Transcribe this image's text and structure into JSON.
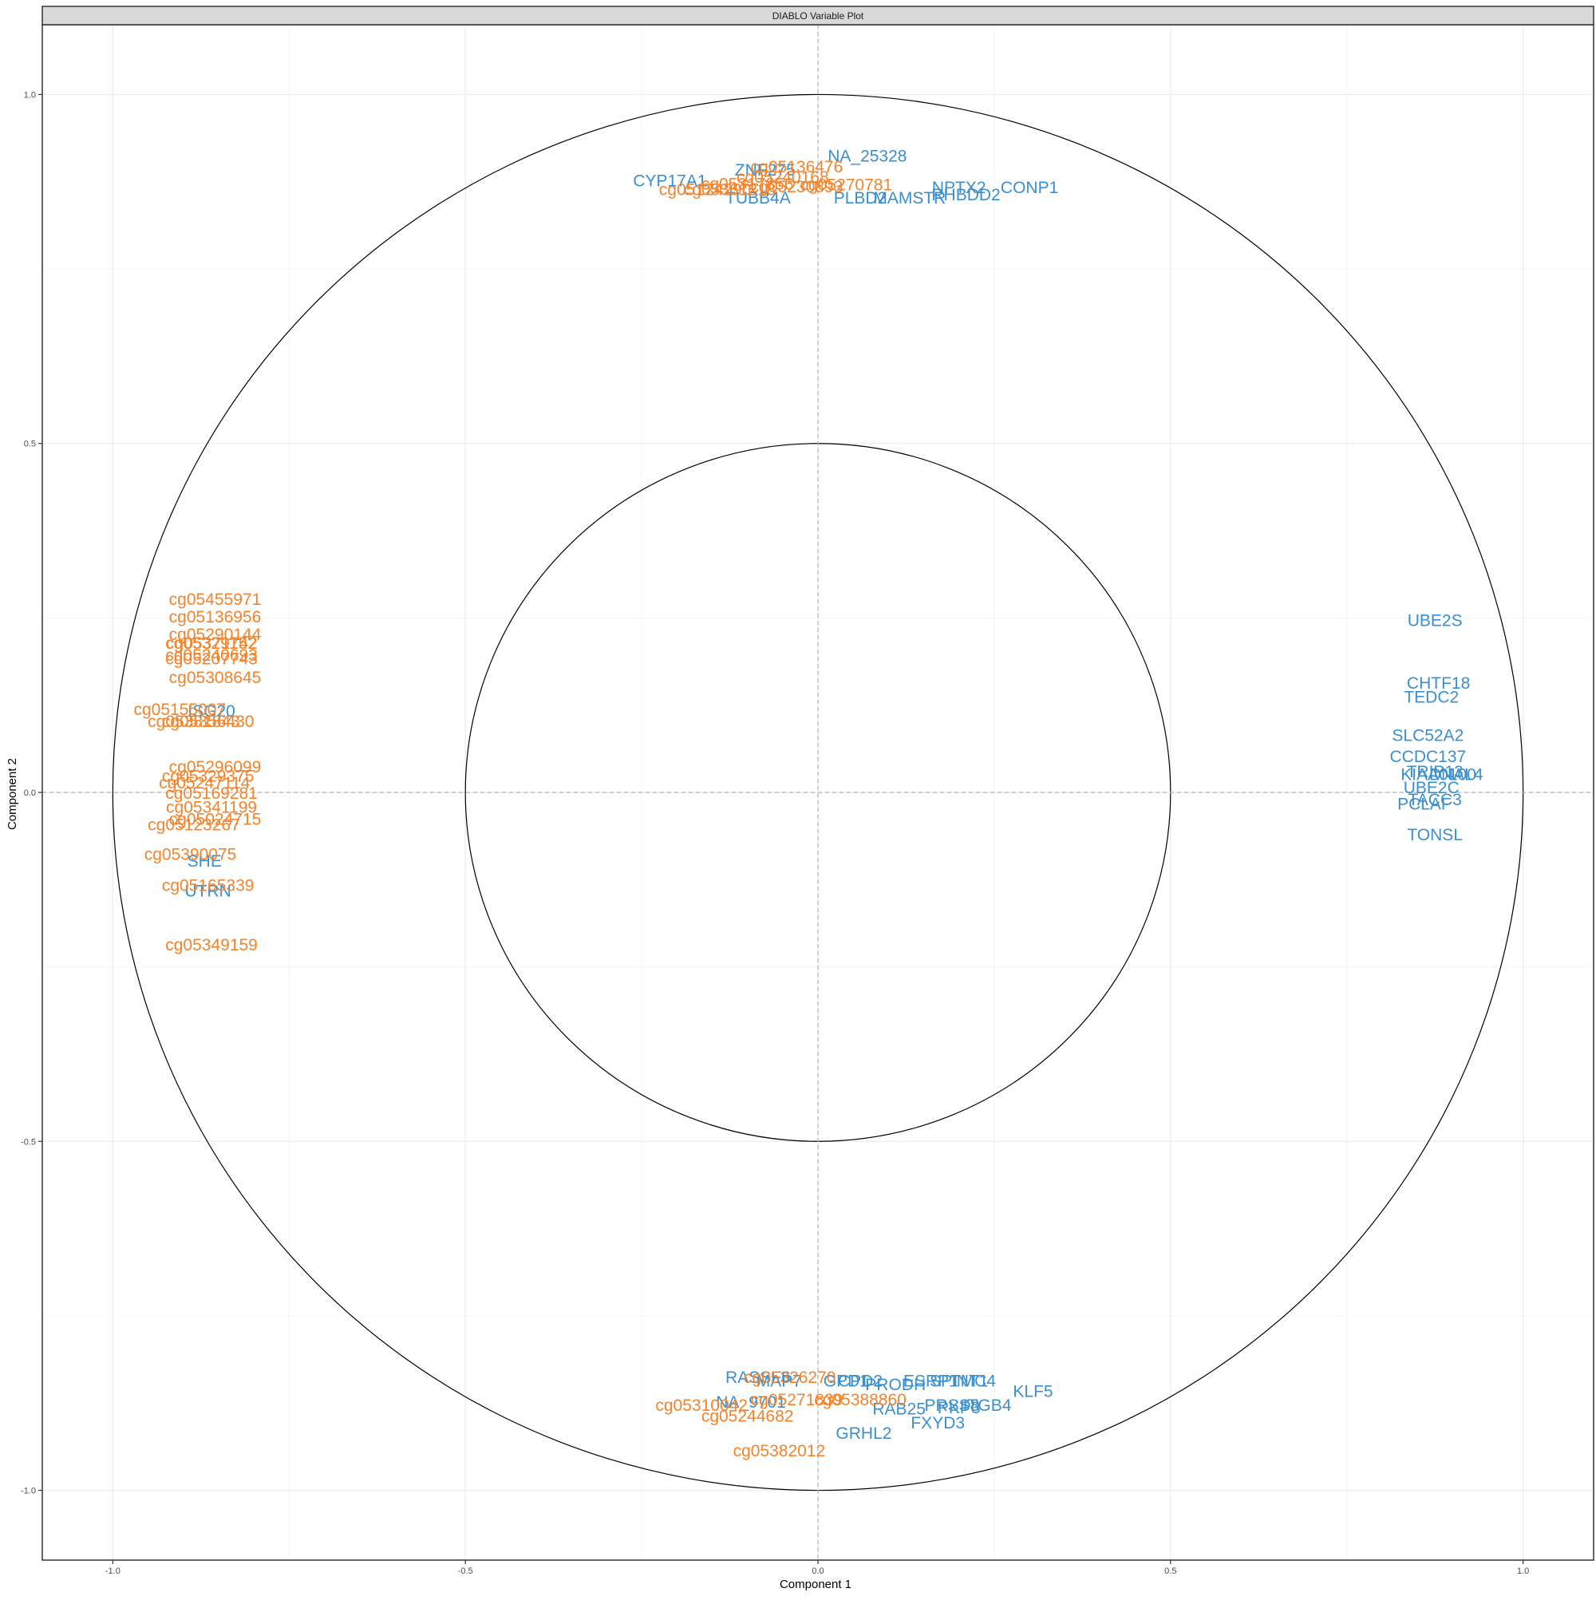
{
  "chart_data": {
    "type": "scatter",
    "title": "DIABLO Variable Plot",
    "xlabel": "Component  1",
    "ylabel": "Component  2",
    "xlim": [
      -1.1,
      1.1
    ],
    "ylim": [
      -1.1,
      1.1
    ],
    "x_ticks": [
      {
        "value": -1.0,
        "label": "-1.0"
      },
      {
        "value": -0.5,
        "label": "-0.5"
      },
      {
        "value": 0.0,
        "label": "0.0"
      },
      {
        "value": 0.5,
        "label": "0.5"
      },
      {
        "value": 1.0,
        "label": "1.0"
      }
    ],
    "y_ticks": [
      {
        "value": 1.0,
        "label": "1.0"
      },
      {
        "value": 0.5,
        "label": "0.5"
      },
      {
        "value": 0.0,
        "label": "0.0"
      },
      {
        "value": -0.5,
        "label": "-0.5"
      },
      {
        "value": -1.0,
        "label": "-1.0"
      }
    ],
    "circles": [
      1.0,
      0.5
    ],
    "grid": true,
    "reference_lines": [
      0
    ],
    "legend": "none",
    "colors": {
      "blue": "#3a8fd0",
      "orange": "#f5832a",
      "grid_major": "#ebebeb",
      "grid_minor": "#f5f5f5",
      "strip_fill": "#d9d9d9"
    },
    "series": [
      {
        "color_key": "blue",
        "points": [
          {
            "label": "NA_25328",
            "x": 0.07,
            "y": 0.91
          },
          {
            "label": "ZNF275",
            "x": -0.075,
            "y": 0.89
          },
          {
            "label": "CYP17A1",
            "x": -0.21,
            "y": 0.875
          },
          {
            "label": "TUBB4A",
            "x": -0.085,
            "y": 0.85
          },
          {
            "label": "NPTX2",
            "x": 0.2,
            "y": 0.865
          },
          {
            "label": "RHBDD2",
            "x": 0.21,
            "y": 0.855
          },
          {
            "label": "CONP1",
            "x": 0.3,
            "y": 0.865
          },
          {
            "label": "PLBD2",
            "x": 0.06,
            "y": 0.85
          },
          {
            "label": "MAMSTR",
            "x": 0.13,
            "y": 0.85
          },
          {
            "label": "UBE2S",
            "x": 0.875,
            "y": 0.245
          },
          {
            "label": "CHTF18",
            "x": 0.88,
            "y": 0.155
          },
          {
            "label": "TEDC2",
            "x": 0.87,
            "y": 0.135
          },
          {
            "label": "SLC52A2",
            "x": 0.865,
            "y": 0.08
          },
          {
            "label": "CCDC137",
            "x": 0.865,
            "y": 0.05
          },
          {
            "label": "TRIP13",
            "x": 0.875,
            "y": 0.028
          },
          {
            "label": "KIAA0100",
            "x": 0.88,
            "y": 0.024
          },
          {
            "label": "DNAL4",
            "x": 0.905,
            "y": 0.024
          },
          {
            "label": "UBE2C",
            "x": 0.87,
            "y": 0.005
          },
          {
            "label": "TACC3",
            "x": 0.875,
            "y": -0.012
          },
          {
            "label": "PCLAF",
            "x": 0.86,
            "y": -0.018
          },
          {
            "label": "TONSL",
            "x": 0.875,
            "y": -0.062
          },
          {
            "label": "ISG20",
            "x": -0.86,
            "y": 0.115
          },
          {
            "label": "SHE",
            "x": -0.87,
            "y": -0.1
          },
          {
            "label": "UTRN",
            "x": -0.865,
            "y": -0.143
          },
          {
            "label": "RASSF6",
            "x": -0.085,
            "y": -0.84
          },
          {
            "label": "MAP7",
            "x": -0.055,
            "y": -0.845
          },
          {
            "label": "GPD1",
            "x": 0.04,
            "y": -0.845
          },
          {
            "label": "CPD2",
            "x": 0.06,
            "y": -0.845
          },
          {
            "label": "PRODH",
            "x": 0.11,
            "y": -0.85
          },
          {
            "label": "ESRP1",
            "x": 0.16,
            "y": -0.845
          },
          {
            "label": "SPINT1",
            "x": 0.2,
            "y": -0.845
          },
          {
            "label": "TMC4",
            "x": 0.22,
            "y": -0.845
          },
          {
            "label": "KLF5",
            "x": 0.305,
            "y": -0.86
          },
          {
            "label": "RAB25",
            "x": 0.115,
            "y": -0.885
          },
          {
            "label": "PRSS8",
            "x": 0.19,
            "y": -0.88
          },
          {
            "label": "PKP3",
            "x": 0.2,
            "y": -0.883
          },
          {
            "label": "ITGB4",
            "x": 0.24,
            "y": -0.88
          },
          {
            "label": "FXYD3",
            "x": 0.17,
            "y": -0.905
          },
          {
            "label": "GRHL2",
            "x": 0.065,
            "y": -0.92
          },
          {
            "label": "NA_9701",
            "x": -0.095,
            "y": -0.875
          }
        ]
      },
      {
        "color_key": "orange",
        "points": [
          {
            "label": "cg05136476",
            "x": -0.03,
            "y": 0.895
          },
          {
            "label": "cg05240168",
            "x": -0.05,
            "y": 0.88
          },
          {
            "label": "cg05317856",
            "x": -0.1,
            "y": 0.87
          },
          {
            "label": "cg05124290",
            "x": -0.16,
            "y": 0.862
          },
          {
            "label": "cg05361218",
            "x": -0.125,
            "y": 0.862
          },
          {
            "label": "cg05230893",
            "x": -0.03,
            "y": 0.866
          },
          {
            "label": "cg05270781",
            "x": 0.04,
            "y": 0.869
          },
          {
            "label": "cg05455971",
            "x": -0.855,
            "y": 0.275
          },
          {
            "label": "cg05136956",
            "x": -0.855,
            "y": 0.25
          },
          {
            "label": "cg05290144",
            "x": -0.855,
            "y": 0.225
          },
          {
            "label": "cg05329742",
            "x": -0.86,
            "y": 0.212
          },
          {
            "label": "cg05371152",
            "x": -0.86,
            "y": 0.212
          },
          {
            "label": "cg05240693",
            "x": -0.86,
            "y": 0.195
          },
          {
            "label": "cg05207743",
            "x": -0.86,
            "y": 0.19
          },
          {
            "label": "cg05308645",
            "x": -0.855,
            "y": 0.163
          },
          {
            "label": "cg05155007",
            "x": -0.905,
            "y": 0.117
          },
          {
            "label": "cg05356430",
            "x": -0.865,
            "y": 0.1
          },
          {
            "label": "cg05381843",
            "x": -0.885,
            "y": 0.1
          },
          {
            "label": "cg05296099",
            "x": -0.855,
            "y": 0.035
          },
          {
            "label": "cg05329375",
            "x": -0.865,
            "y": 0.022
          },
          {
            "label": "cg05247114",
            "x": -0.87,
            "y": 0.012
          },
          {
            "label": "cg05169281",
            "x": -0.86,
            "y": -0.003
          },
          {
            "label": "cg05341199",
            "x": -0.86,
            "y": -0.023
          },
          {
            "label": "cg05024715",
            "x": -0.855,
            "y": -0.04
          },
          {
            "label": "cg05123267",
            "x": -0.885,
            "y": -0.048
          },
          {
            "label": "cg05390075",
            "x": -0.89,
            "y": -0.09
          },
          {
            "label": "cg05165339",
            "x": -0.865,
            "y": -0.135
          },
          {
            "label": "cg05349159",
            "x": -0.86,
            "y": -0.22
          },
          {
            "label": "cg05326270",
            "x": -0.04,
            "y": -0.84
          },
          {
            "label": "cg05310042",
            "x": -0.165,
            "y": -0.88
          },
          {
            "label": "cg05244682",
            "x": -0.1,
            "y": -0.895
          },
          {
            "label": "cg05382012",
            "x": -0.055,
            "y": -0.945
          },
          {
            "label": "cg05271839",
            "x": -0.03,
            "y": -0.872
          },
          {
            "label": "cg05388860",
            "x": 0.06,
            "y": -0.872
          }
        ]
      }
    ]
  }
}
